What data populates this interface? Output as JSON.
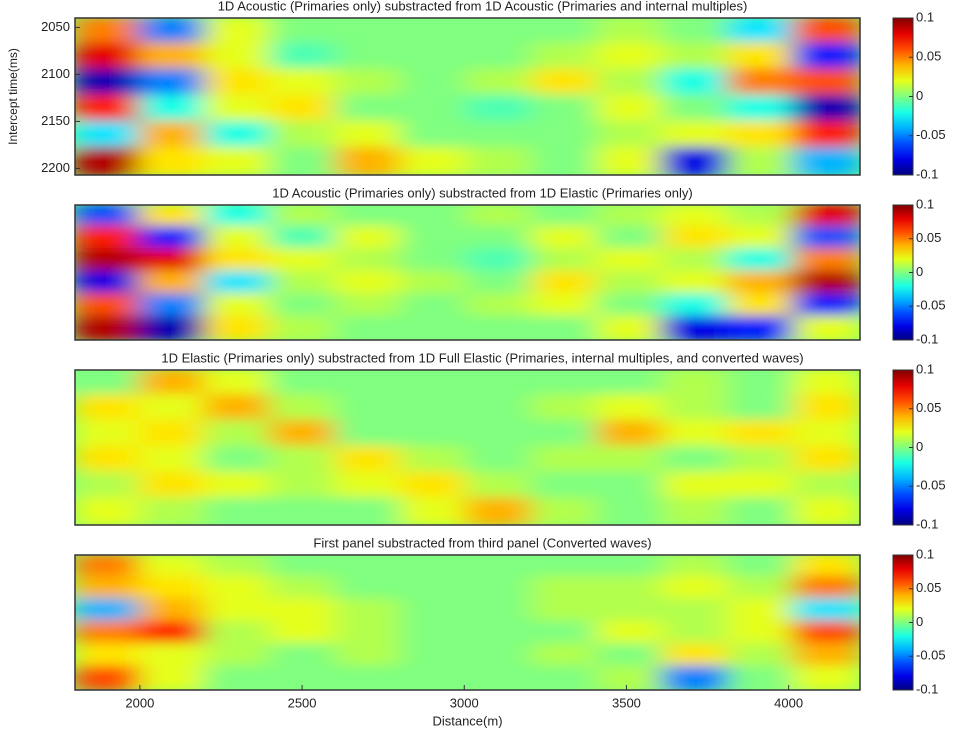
{
  "chart_data": [
    {
      "type": "heatmap",
      "title": "1D Acoustic (Primaries only) substracted from 1D Acoustic (Primaries and internal multiples)",
      "y_label": "Intercept time(ms)",
      "ylim": [
        2040,
        2207
      ],
      "yticks": [
        2050,
        2100,
        2150,
        2200
      ],
      "colormap": "jet",
      "zlim": [
        -0.1,
        0.1
      ],
      "zticks": [
        0.1,
        0.05,
        0,
        -0.05,
        -0.1
      ],
      "z": [
        [
          0.05,
          -0.05,
          0.02,
          0,
          0,
          0,
          0,
          0,
          0.01,
          0,
          -0.03,
          0.06
        ],
        [
          0.08,
          0.04,
          0.02,
          -0.01,
          0,
          0,
          0,
          0.01,
          0.02,
          0.01,
          0.03,
          -0.07
        ],
        [
          -0.09,
          -0.05,
          0.03,
          0.02,
          0.01,
          0,
          0.01,
          0.03,
          0.01,
          -0.02,
          0.05,
          0.06
        ],
        [
          0.07,
          -0.02,
          0.02,
          0.03,
          0,
          0,
          -0.01,
          0,
          0.02,
          0,
          -0.02,
          -0.09
        ],
        [
          -0.03,
          0.04,
          -0.02,
          0.01,
          0.02,
          0,
          0,
          0,
          0.01,
          0.02,
          0.03,
          0.07
        ],
        [
          0.09,
          0.03,
          0.02,
          0,
          0.04,
          0.02,
          0.01,
          0,
          0.02,
          -0.08,
          0.01,
          -0.04
        ]
      ]
    },
    {
      "type": "heatmap",
      "title": "1D Acoustic (Primaries only) substracted from 1D Elastic (Primaries only)",
      "colormap": "jet",
      "zlim": [
        -0.1,
        0.1
      ],
      "zticks": [
        0.1,
        0.05,
        0,
        -0.05,
        -0.1
      ],
      "z": [
        [
          -0.06,
          0.03,
          -0.02,
          0.01,
          0,
          0,
          0.01,
          0,
          0.01,
          0.02,
          0.01,
          0.08
        ],
        [
          0.07,
          -0.07,
          0.02,
          -0.01,
          0.02,
          0,
          0,
          0.02,
          0,
          0.03,
          0.02,
          -0.06
        ],
        [
          0.09,
          0.08,
          0.03,
          0.02,
          0.01,
          0,
          -0.01,
          0.01,
          0.02,
          0.01,
          -0.02,
          0.05
        ],
        [
          -0.08,
          0.04,
          -0.03,
          0.01,
          0.02,
          0.01,
          0,
          0.03,
          0.01,
          0.02,
          0.04,
          0.09
        ],
        [
          0.06,
          -0.05,
          0.02,
          0,
          0.01,
          0,
          0.01,
          0.02,
          0,
          -0.02,
          0.03,
          -0.07
        ],
        [
          0.09,
          -0.09,
          0.03,
          0.01,
          0,
          0,
          0,
          0,
          0.02,
          -0.08,
          -0.07,
          0.02
        ]
      ]
    },
    {
      "type": "heatmap",
      "title": "1D Elastic (Primaries only) substracted from 1D Full Elastic (Primaries, internal multiples, and converted waves)",
      "colormap": "jet",
      "zlim": [
        -0.1,
        0.1
      ],
      "zticks": [
        0.1,
        0.05,
        0,
        -0.05,
        -0.1
      ],
      "z": [
        [
          0,
          0.04,
          0.02,
          0,
          0,
          0,
          0,
          0,
          0,
          0.01,
          0,
          0.02
        ],
        [
          0.03,
          0.02,
          0.04,
          0.01,
          0,
          0,
          0,
          0.01,
          0.02,
          0.01,
          0,
          0.03
        ],
        [
          0.02,
          0.03,
          0.01,
          0.04,
          0,
          0,
          0,
          0,
          0.04,
          0.02,
          0.03,
          0.02
        ],
        [
          0.03,
          0.02,
          0,
          0.01,
          0.03,
          0.01,
          0,
          0.01,
          0.01,
          0,
          0.01,
          0.03
        ],
        [
          0.01,
          0.03,
          0.02,
          0.01,
          0.02,
          0.03,
          0.01,
          0,
          0,
          0.02,
          0.02,
          0.01
        ],
        [
          0.02,
          0.01,
          0,
          0,
          0,
          0.02,
          0.04,
          0.01,
          0,
          0.01,
          0,
          0.02
        ]
      ]
    },
    {
      "type": "heatmap",
      "title": "First panel substracted from third panel (Converted waves)",
      "x_label": "Distance(m)",
      "xlim": [
        1800,
        4220
      ],
      "xticks": [
        2000,
        2500,
        3000,
        3500,
        4000
      ],
      "colormap": "jet",
      "zlim": [
        -0.1,
        0.1
      ],
      "zticks": [
        0.1,
        0.05,
        0,
        -0.05,
        -0.1
      ],
      "z": [
        [
          0.05,
          0.02,
          0.01,
          0,
          0,
          0,
          0,
          0,
          0,
          0.01,
          0,
          0.03
        ],
        [
          0.04,
          0.03,
          0.02,
          0.01,
          0,
          0,
          0,
          0.01,
          0.01,
          0.02,
          0.01,
          0.05
        ],
        [
          -0.04,
          0.04,
          0.02,
          0.02,
          0.01,
          0,
          0,
          0.01,
          0.01,
          0.01,
          0.02,
          -0.03
        ],
        [
          0.05,
          0.07,
          0.01,
          0.02,
          0.01,
          0,
          0,
          0,
          0.02,
          0.01,
          0.02,
          0.06
        ],
        [
          0.03,
          0.02,
          0.01,
          0,
          0.01,
          0,
          0,
          0.01,
          0,
          0.03,
          0.01,
          0.04
        ],
        [
          0.06,
          0.02,
          0,
          0,
          0,
          0,
          0,
          0,
          0.01,
          -0.05,
          0,
          0.02
        ]
      ]
    }
  ]
}
